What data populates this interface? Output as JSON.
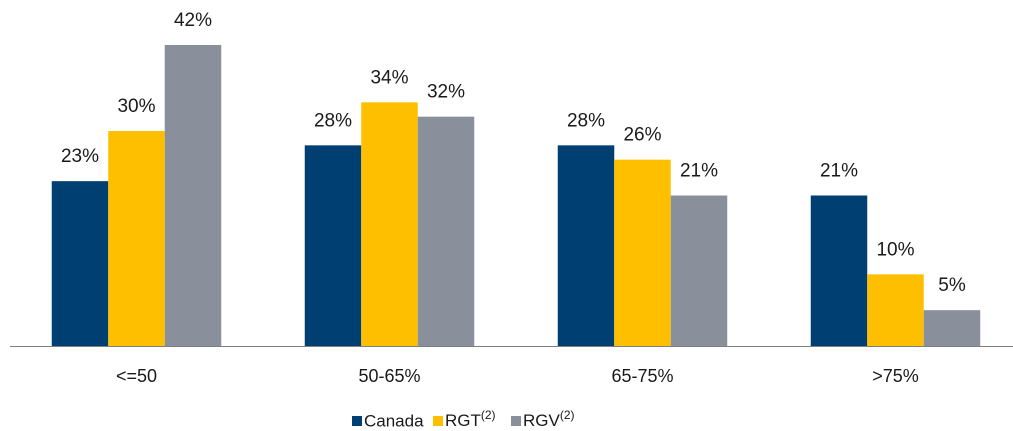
{
  "chart_data": {
    "type": "bar",
    "categories": [
      "<=50",
      "50-65%",
      "65-75%",
      ">75%"
    ],
    "series": [
      {
        "name": "Canada",
        "color": "#003f72",
        "values": [
          23,
          28,
          28,
          21
        ],
        "value_labels": [
          "23%",
          "28%",
          "28%",
          "21%"
        ]
      },
      {
        "name": "RGT(2)",
        "color": "#fdbf00",
        "values": [
          30,
          34,
          26,
          10
        ],
        "value_labels": [
          "30%",
          "34%",
          "26%",
          "10%"
        ]
      },
      {
        "name": "RGV(2)",
        "color": "#8a8f9c",
        "values": [
          42,
          32,
          21,
          5
        ],
        "value_labels": [
          "42%",
          "32%",
          "21%",
          "5%"
        ]
      }
    ],
    "legend": "bottom"
  }
}
